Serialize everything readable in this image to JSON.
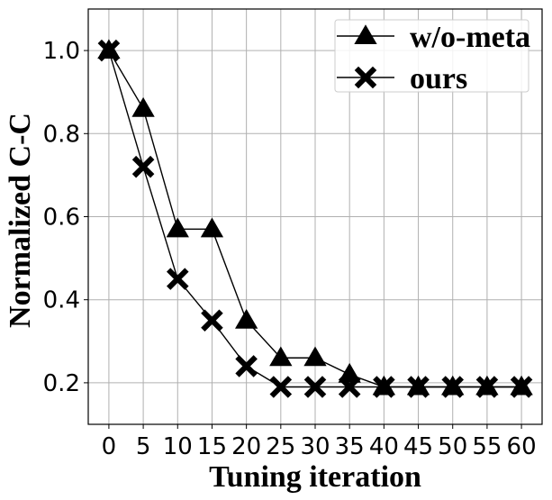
{
  "chart_data": {
    "type": "line",
    "title": "",
    "xlabel": "Tuning iteration",
    "ylabel": "Normalized C-C",
    "x": [
      0,
      5,
      10,
      15,
      20,
      25,
      30,
      35,
      40,
      45,
      50,
      55,
      60
    ],
    "xticks": [
      "0",
      "5",
      "10",
      "15",
      "20",
      "25",
      "30",
      "35",
      "40",
      "45",
      "50",
      "55",
      "60"
    ],
    "yticks": [
      "0.2",
      "0.4",
      "0.6",
      "0.8",
      "1.0"
    ],
    "xlim": [
      -3,
      63
    ],
    "ylim": [
      0.1,
      1.1
    ],
    "grid": true,
    "legend_position": "top-right",
    "series": [
      {
        "name": "w/o-meta",
        "marker": "triangle",
        "color": "#000000",
        "values": [
          1.0,
          0.86,
          0.57,
          0.57,
          0.35,
          0.26,
          0.26,
          0.22,
          0.19,
          0.19,
          0.19,
          0.19,
          0.19
        ]
      },
      {
        "name": "ours",
        "marker": "x-filled",
        "color": "#000000",
        "values": [
          1.0,
          0.72,
          0.45,
          0.35,
          0.24,
          0.19,
          0.19,
          0.19,
          0.19,
          0.19,
          0.19,
          0.19,
          0.19
        ]
      }
    ]
  }
}
